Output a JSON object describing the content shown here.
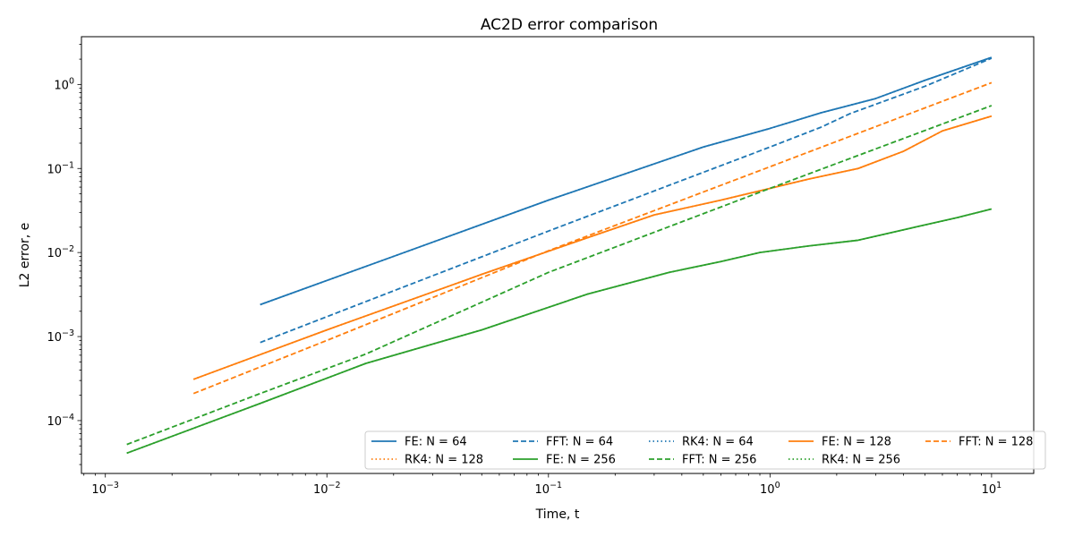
{
  "chart_data": {
    "type": "line",
    "title": "AC2D error comparison",
    "xlabel": "Time, t",
    "ylabel": "L2 error, e",
    "xscale": "log",
    "yscale": "log",
    "xlim": [
      0.00078,
      15.5
    ],
    "ylim": [
      2.35e-05,
      3.7
    ],
    "xticks": [
      {
        "value": 0.001,
        "mant": "10",
        "exp": "−3"
      },
      {
        "value": 0.01,
        "mant": "10",
        "exp": "−2"
      },
      {
        "value": 0.1,
        "mant": "10",
        "exp": "−1"
      },
      {
        "value": 1,
        "mant": "10",
        "exp": "0"
      },
      {
        "value": 10,
        "mant": "10",
        "exp": "1"
      }
    ],
    "yticks": [
      {
        "value": 0.0001,
        "mant": "10",
        "exp": "−4"
      },
      {
        "value": 0.001,
        "mant": "10",
        "exp": "−3"
      },
      {
        "value": 0.01,
        "mant": "10",
        "exp": "−2"
      },
      {
        "value": 0.1,
        "mant": "10",
        "exp": "−1"
      },
      {
        "value": 1,
        "mant": "10",
        "exp": "0"
      }
    ],
    "grid": false,
    "legend_position": "lower-right",
    "legend_columns": 5,
    "series": [
      {
        "name": "FE: N = 64",
        "color": "#1f77b4",
        "dash": "solid",
        "x": [
          0.005,
          0.02,
          0.1,
          0.5,
          1.0,
          1.7,
          3.0,
          5.0,
          10.0
        ],
        "y": [
          0.0024,
          0.009,
          0.042,
          0.18,
          0.3,
          0.46,
          0.68,
          1.12,
          2.1
        ]
      },
      {
        "name": "FFT: N = 64",
        "color": "#1f77b4",
        "dash": "dashed",
        "x": [
          0.005,
          0.02,
          0.1,
          0.5,
          1.0,
          1.7,
          2.3,
          5.0,
          10.0
        ],
        "y": [
          0.00085,
          0.0035,
          0.018,
          0.09,
          0.18,
          0.31,
          0.45,
          0.95,
          2.05
        ]
      },
      {
        "name": "RK4: N = 64",
        "color": "#1f77b4",
        "dash": "dotted",
        "x": [
          0.005,
          0.02,
          0.1,
          0.5,
          1.0,
          1.7,
          3.0,
          5.0,
          10.0
        ],
        "y": [
          0.0024,
          0.009,
          0.042,
          0.18,
          0.3,
          0.46,
          0.68,
          1.12,
          2.1
        ]
      },
      {
        "name": "FE: N = 128",
        "color": "#ff7f0e",
        "dash": "solid",
        "x": [
          0.0025,
          0.01,
          0.05,
          0.15,
          0.3,
          0.6,
          1.0,
          1.5,
          2.5,
          4.0,
          6.0,
          10.0
        ],
        "y": [
          0.00031,
          0.0012,
          0.0055,
          0.015,
          0.028,
          0.042,
          0.058,
          0.075,
          0.1,
          0.16,
          0.28,
          0.42
        ]
      },
      {
        "name": "FFT: N = 128",
        "color": "#ff7f0e",
        "dash": "dashed",
        "x": [
          0.0025,
          0.01,
          0.1,
          1.0,
          10.0
        ],
        "y": [
          0.00021,
          0.0009,
          0.0105,
          0.105,
          1.05
        ]
      },
      {
        "name": "RK4: N = 128",
        "color": "#ff7f0e",
        "dash": "dotted",
        "x": [
          0.0025,
          0.01,
          0.05,
          0.15,
          0.3,
          0.6,
          1.0,
          1.5,
          2.5,
          4.0,
          6.0,
          10.0
        ],
        "y": [
          0.00031,
          0.0012,
          0.0055,
          0.015,
          0.028,
          0.042,
          0.058,
          0.075,
          0.1,
          0.16,
          0.28,
          0.42
        ]
      },
      {
        "name": "FE: N = 256",
        "color": "#2ca02c",
        "dash": "solid",
        "x": [
          0.00125,
          0.005,
          0.015,
          0.05,
          0.15,
          0.35,
          0.6,
          0.9,
          1.5,
          2.5,
          4.5,
          7.0,
          10.0
        ],
        "y": [
          4.1e-05,
          0.00016,
          0.00048,
          0.0012,
          0.0032,
          0.0058,
          0.0078,
          0.01,
          0.012,
          0.014,
          0.02,
          0.026,
          0.033
        ]
      },
      {
        "name": "FFT: N = 256",
        "color": "#2ca02c",
        "dash": "dashed",
        "x": [
          0.00125,
          0.005,
          0.015,
          0.1,
          1.0,
          10.0
        ],
        "y": [
          5.2e-05,
          0.00021,
          0.00062,
          0.0058,
          0.058,
          0.56
        ]
      },
      {
        "name": "RK4: N = 256",
        "color": "#2ca02c",
        "dash": "dotted",
        "x": [
          0.00125,
          0.005,
          0.015,
          0.05,
          0.15,
          0.35,
          0.6,
          0.9,
          1.5,
          2.5,
          4.5,
          7.0,
          10.0
        ],
        "y": [
          4.1e-05,
          0.00016,
          0.00048,
          0.0012,
          0.0032,
          0.0058,
          0.0078,
          0.01,
          0.012,
          0.014,
          0.02,
          0.026,
          0.033
        ]
      }
    ]
  }
}
